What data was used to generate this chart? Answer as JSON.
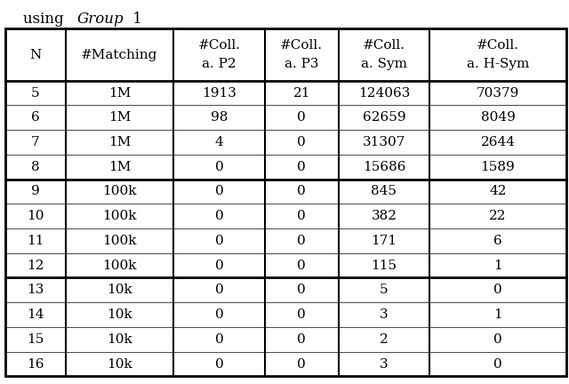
{
  "col_headers": [
    [
      "N",
      ""
    ],
    [
      "#Matching",
      ""
    ],
    [
      "#Coll.",
      "a. P2"
    ],
    [
      "#Coll.",
      "a. P3"
    ],
    [
      "#Coll.",
      "a. Sym"
    ],
    [
      "#Coll.",
      "a. H-Sym"
    ]
  ],
  "rows": [
    [
      "5",
      "1M",
      "1913",
      "21",
      "124063",
      "70379"
    ],
    [
      "6",
      "1M",
      "98",
      "0",
      "62659",
      "8049"
    ],
    [
      "7",
      "1M",
      "4",
      "0",
      "31307",
      "2644"
    ],
    [
      "8",
      "1M",
      "0",
      "0",
      "15686",
      "1589"
    ],
    [
      "9",
      "100k",
      "0",
      "0",
      "845",
      "42"
    ],
    [
      "10",
      "100k",
      "0",
      "0",
      "382",
      "22"
    ],
    [
      "11",
      "100k",
      "0",
      "0",
      "171",
      "6"
    ],
    [
      "12",
      "100k",
      "0",
      "0",
      "115",
      "1"
    ],
    [
      "13",
      "10k",
      "0",
      "0",
      "5",
      "0"
    ],
    [
      "14",
      "10k",
      "0",
      "0",
      "3",
      "1"
    ],
    [
      "15",
      "10k",
      "0",
      "0",
      "2",
      "0"
    ],
    [
      "16",
      "10k",
      "0",
      "0",
      "3",
      "0"
    ]
  ],
  "bg_color": "#ffffff",
  "text_color": "#000000",
  "border_color": "#000000",
  "font_size": 11,
  "header_font_size": 11,
  "title_prefix": "using ",
  "title_italic": "Group",
  "title_suffix": " 1"
}
